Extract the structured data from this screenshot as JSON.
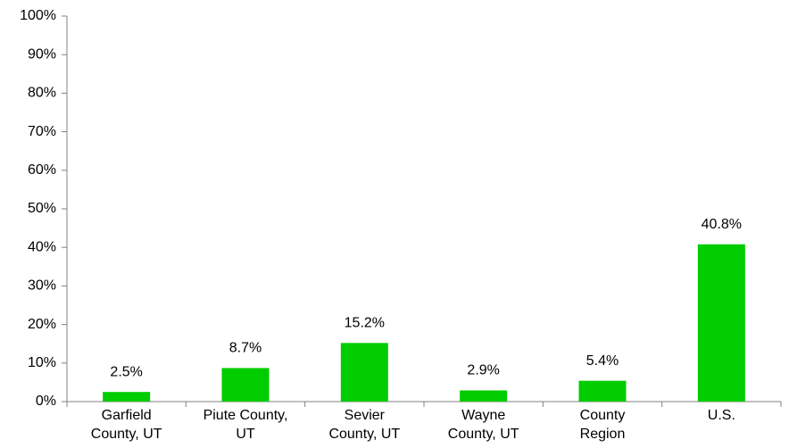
{
  "chart_data": {
    "type": "bar",
    "categories": [
      "Garfield\nCounty, UT",
      "Piute County,\nUT",
      "Sevier\nCounty, UT",
      "Wayne\nCounty, UT",
      "County\nRegion",
      "U.S."
    ],
    "values": [
      2.5,
      8.7,
      15.2,
      2.9,
      5.4,
      40.8
    ],
    "value_labels": [
      "2.5%",
      "8.7%",
      "15.2%",
      "2.9%",
      "5.4%",
      "40.8%"
    ],
    "color": "#00cc00",
    "ylim": [
      0,
      100
    ],
    "yticks": [
      {
        "value": 0,
        "label": "0%"
      },
      {
        "value": 10,
        "label": "10%"
      },
      {
        "value": 20,
        "label": "20%"
      },
      {
        "value": 30,
        "label": "30%"
      },
      {
        "value": 40,
        "label": "40%"
      },
      {
        "value": 50,
        "label": "50%"
      },
      {
        "value": 60,
        "label": "60%"
      },
      {
        "value": 70,
        "label": "70%"
      },
      {
        "value": 80,
        "label": "80%"
      },
      {
        "value": 90,
        "label": "90%"
      },
      {
        "value": 100,
        "label": "100%"
      }
    ],
    "grid": false
  }
}
